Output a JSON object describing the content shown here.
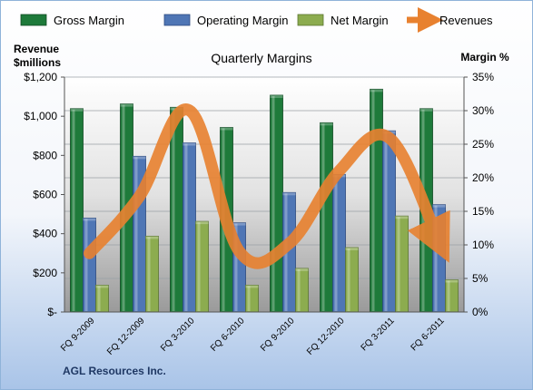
{
  "chart_data": {
    "type": "bar",
    "title": "Quarterly Margins",
    "company": "AGL Resources Inc.",
    "ylabel_left": [
      "Revenue",
      "$millions"
    ],
    "ylabel_right": "Margin %",
    "categories": [
      "FQ 9-2009",
      "FQ 12-2009",
      "FQ 3-2010",
      "FQ 6-2010",
      "FQ 9-2010",
      "FQ 12-2010",
      "FQ 3-2011",
      "FQ 6-2011"
    ],
    "left_ticks": [
      "$-",
      "$200",
      "$400",
      "$600",
      "$800",
      "$1,000",
      "$1,200"
    ],
    "right_ticks": [
      "0%",
      "5%",
      "10%",
      "15%",
      "20%",
      "25%",
      "30%",
      "35%"
    ],
    "ylim_left": [
      0,
      1200
    ],
    "ylim_right": [
      0,
      35
    ],
    "legend_position": "top",
    "grid": true,
    "series": [
      {
        "name": "Gross Margin",
        "kind": "bar",
        "axis": "right",
        "color": "#1e7a3a",
        "values": [
          30.3,
          31.0,
          30.5,
          27.5,
          32.3,
          28.2,
          33.2,
          30.3
        ]
      },
      {
        "name": "Operating Margin",
        "kind": "bar",
        "axis": "right",
        "color": "#4f76b5",
        "values": [
          14.0,
          23.2,
          25.2,
          13.3,
          17.8,
          20.5,
          27.0,
          16.0
        ]
      },
      {
        "name": "Net Margin",
        "kind": "bar",
        "axis": "right",
        "color": "#8cac4f",
        "values": [
          4.0,
          11.3,
          13.5,
          4.0,
          6.5,
          9.6,
          14.3,
          4.8
        ]
      },
      {
        "name": "Revenues",
        "kind": "line",
        "axis": "left",
        "color": "#e8812f",
        "values": [
          300,
          590,
          1030,
          310,
          350,
          720,
          890,
          360
        ]
      }
    ]
  }
}
